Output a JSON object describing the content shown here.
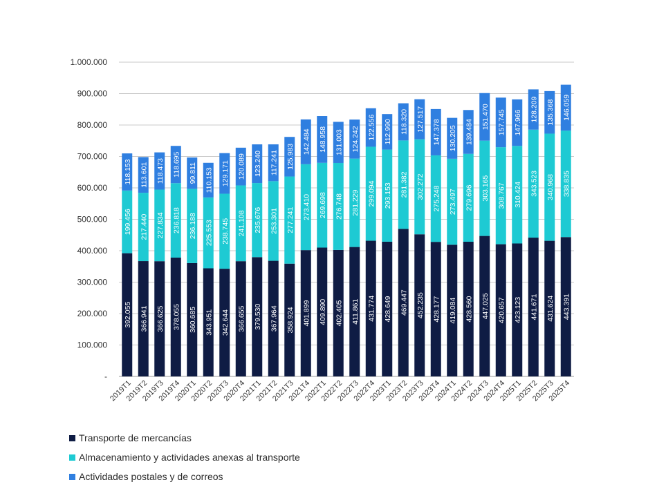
{
  "chart_data": {
    "type": "bar",
    "stacked": true,
    "categories": [
      "2019T1",
      "2019T2",
      "2019T3",
      "2019T4",
      "2020T1",
      "2020T2",
      "2020T3",
      "2020T4",
      "2021T1",
      "2021T2",
      "2021T3",
      "2021T4",
      "2022T1",
      "2022T2",
      "2022T3",
      "2022T4",
      "2023T1",
      "2023T2",
      "2023T3",
      "2023T4",
      "2024T1",
      "2024T2",
      "2024T3",
      "2024T4",
      "2025T1",
      "2025T2",
      "2025T3",
      "2025T4"
    ],
    "series": [
      {
        "name": "Transporte de mercancías",
        "color": "#0f1c44",
        "values": [
          392055,
          366941,
          366625,
          378055,
          360685,
          343951,
          342644,
          366655,
          379530,
          367964,
          358924,
          401899,
          409890,
          402405,
          411861,
          431774,
          428649,
          469447,
          452235,
          428177,
          419084,
          428560,
          447025,
          420657,
          423123,
          441671,
          431624,
          443391
        ],
        "labels": [
          "392.055",
          "366.941",
          "366.625",
          "378.055",
          "360.685",
          "343.951",
          "342.644",
          "366.655",
          "379.530",
          "367.964",
          "358.924",
          "401.899",
          "409.890",
          "402.405",
          "411.861",
          "431.774",
          "428.649",
          "469.447",
          "452.235",
          "428.177",
          "419.084",
          "428.560",
          "447.025",
          "420.657",
          "423.123",
          "441.671",
          "431.624",
          "443.391"
        ]
      },
      {
        "name": "Almacenamiento y actividades anexas al transporte",
        "color": "#1ecad3",
        "values": [
          199456,
          217440,
          227834,
          236818,
          236188,
          225553,
          238745,
          241108,
          235676,
          253301,
          277241,
          273410,
          269698,
          276748,
          281229,
          299094,
          293153,
          281382,
          302272,
          275248,
          273497,
          279696,
          303165,
          308767,
          310424,
          343523,
          340968,
          338835
        ],
        "labels": [
          "199.456",
          "217.440",
          "227.834",
          "236.818",
          "236.188",
          "225.553",
          "238.745",
          "241.108",
          "235.676",
          "253.301",
          "277.241",
          "273.410",
          "269.698",
          "276.748",
          "281.229",
          "299.094",
          "293.153",
          "281.382",
          "302.272",
          "275.248",
          "273.497",
          "279.696",
          "303.165",
          "308.767",
          "310.424",
          "343.523",
          "340.968",
          "338.835"
        ]
      },
      {
        "name": "Actividades postales y de correos",
        "color": "#2f7fe0",
        "values": [
          118153,
          113601,
          118473,
          118695,
          99811,
          110153,
          129171,
          120089,
          123240,
          117241,
          125983,
          142484,
          148958,
          131003,
          124242,
          122556,
          112990,
          118320,
          127517,
          147378,
          130205,
          139484,
          151470,
          157745,
          147966,
          128209,
          135368,
          146059
        ],
        "labels": [
          "118.153",
          "113.601",
          "118.473",
          "118.695",
          "99.811",
          "110.153",
          "129.171",
          "120.089",
          "123.240",
          "117.241",
          "125.983",
          "142.484",
          "148.958",
          "131.003",
          "124.242",
          "122.556",
          "112.990",
          "118.320",
          "127.517",
          "147.378",
          "130.205",
          "139.484",
          "151.470",
          "157.745",
          "147.966",
          "128.209",
          "135.368",
          "146.059"
        ]
      }
    ],
    "ylim": [
      0,
      1000000
    ],
    "yticks": [
      0,
      100000,
      200000,
      300000,
      400000,
      500000,
      600000,
      700000,
      800000,
      900000,
      1000000
    ],
    "ytick_labels": [
      "-",
      "100.000",
      "200.000",
      "300.000",
      "400.000",
      "500.000",
      "600.000",
      "700.000",
      "800.000",
      "900.000",
      "1.000.000"
    ],
    "grid": true,
    "legend_position": "bottom-left",
    "title": "",
    "xlabel": "",
    "ylabel": ""
  }
}
